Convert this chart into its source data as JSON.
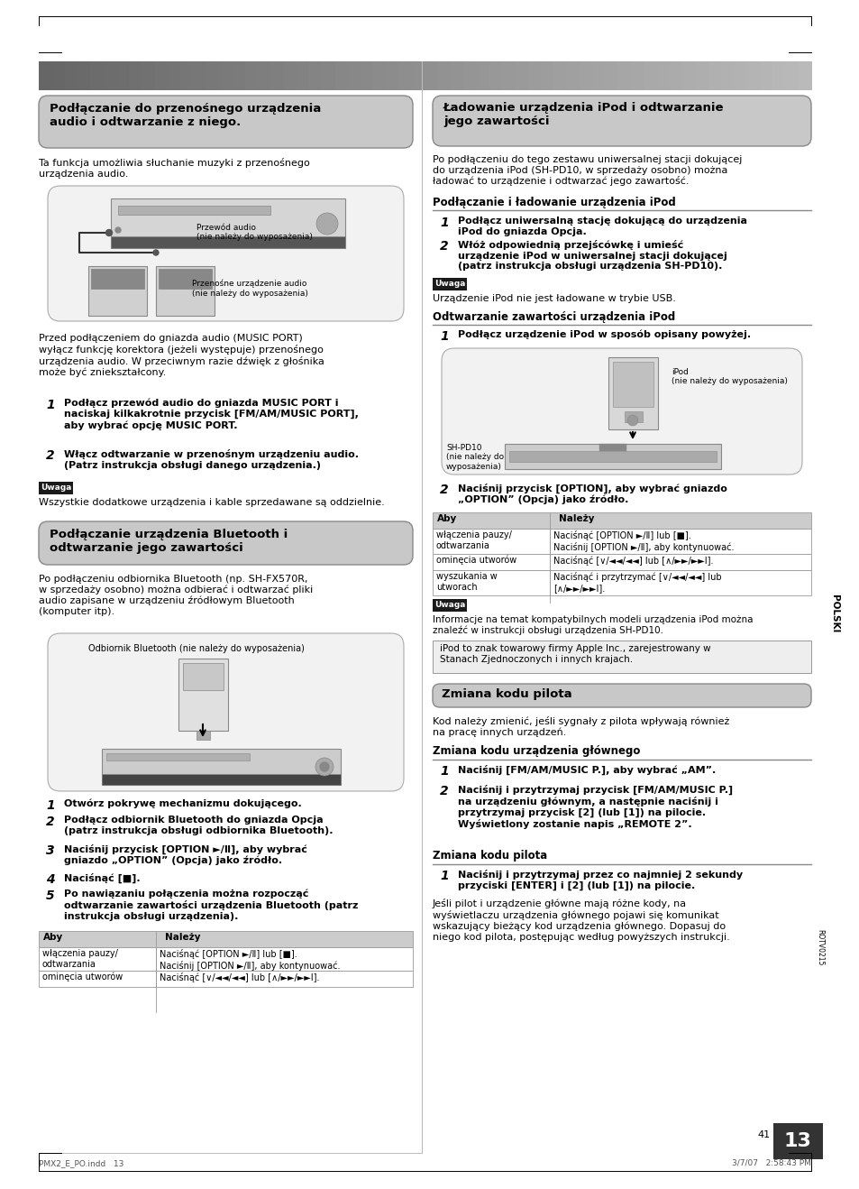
{
  "page_bg": "#ffffff",
  "page_width": 9.54,
  "page_height": 13.18,
  "left_col_title1": "Podłączanie do przenośnego urządzenia\naudio i odtwarzanie z niego.",
  "left_col_body1": "Ta funkcja umożliwia słuchanie muzyki z przenośnego\nurządzenia audio.",
  "left_img1_label1": "Przewód audio\n(nie należy do wyposażenia)",
  "left_img1_label2": "Przenośne urządzenie audio\n(nie należy do wyposażenia)",
  "left_col_body2": "Przed podłączeniem do gniazda audio (MUSIC PORT)\nwyłącz funkcję korektora (jeżeli występuje) przenośnego\nurządzenia audio. W przeciwnym razie dźwięk z głośnika\nmoże być zniekształcony.",
  "left_step1": "Podłącz przewód audio do gniazda MUSIC PORT i\nnaciskaj kilkakrotnie przycisk [FM/AM/MUSIC PORT],\naby wybrać opcję MUSIC PORT.",
  "left_step2": "Włącz odtwarzanie w przenośnym urządzeniu audio.\n(Patrz instrukcja obsługi danego urządzenia.)",
  "left_uwaga1_label": "Uwaga",
  "left_uwaga1_text": "Wszystkie dodatkowe urządzenia i kable sprzedawane są oddzielnie.",
  "left_col_title2": "Podłączanie urządzenia Bluetooth i\nodtwarzanie jego zawartości",
  "left_col_body3": "Po podłączeniu odbiornika Bluetooth (np. SH-FX570R,\nw sprzedaży osobno) można odbierać i odtwarzać pliki\naudio zapisane w urządzeniu źródłowym Bluetooth\n(komputer itp).",
  "left_img2_label": "Odbiornik Bluetooth (nie należy do wyposażenia)",
  "left_step3": "Otwórz pokrywę mechanizmu dokującego.",
  "left_step4": "Podłącz odbiornik Bluetooth do gniazda Opcja\n(patrz instrukcja obsługi odbiornika Bluetooth).",
  "left_step5": "Naciśnij przycisk [OPTION ►/Ⅱ], aby wybrać\ngniazdo „OPTION” (Opcja) jako źródło.",
  "left_step6": "Naciśnąć [■].",
  "left_step7": "Po nawiązaniu połączenia można rozpocząć\nodtwarzanie zawartości urządzenia Bluetooth (patrz\ninstrukcja obsługi urządzenia).",
  "left_table_header": [
    "Aby",
    "Należy"
  ],
  "left_table_rows": [
    [
      "włączenia pauzy/\nodtwarzania",
      "Naciśnąć [OPTION ►/Ⅱ] lub [■].\nNaciśnij [OPTION ►/Ⅱ], aby kontynuować."
    ],
    [
      "ominęcia utworów",
      "Naciśnąć [∨/◄◄/◄◄] lub [∧/►►/►►Ⅰ]."
    ]
  ],
  "right_col_title1": "Ładowanie urządzenia iPod i odtwarzanie\njego zawartości",
  "right_col_body1": "Po podłączeniu do tego zestawu uniwersalnej stacji dokującej\ndo urządzenia iPod (SH-PD10, w sprzedaży osobno) można\nładować to urządzenie i odtwarzać jego zawartość.",
  "right_sub_title1": "Podłączanie i ładowanie urządzenia iPod",
  "right_step1": "Podłącz uniwersalną stację dokującą do urządzenia\niPod do gniazda Opcja.",
  "right_step2": "Włóż odpowiednią przejścówkę i umieść\nurządzenie iPod w uniwersalnej stacji dokującej\n(patrz instrukcja obsługi urządzenia SH-PD10).",
  "right_uwaga1_label": "Uwaga",
  "right_uwaga1_text": "Urządzenie iPod nie jest ładowane w trybie USB.",
  "right_sub_title2": "Odtwarzanie zawartości urządzenia iPod",
  "right_step3": "Podłącz urządzenie iPod w sposób opisany powyżej.",
  "right_img_label1": "iPod\n(nie należy do wyposażenia)",
  "right_img_label2": "SH-PD10\n(nie należy do\nwyposażenia)",
  "right_step4": "Naciśnij przycisk [OPTION], aby wybrać gniazdo\n„OPTION” (Opcja) jako źródło.",
  "right_table_header": [
    "Aby",
    "Należy"
  ],
  "right_table_rows": [
    [
      "włączenia pauzy/\nodtwarzania",
      "Naciśnąć [OPTION ►/Ⅱ] lub [■].\nNaciśnij [OPTION ►/Ⅱ], aby kontynuować."
    ],
    [
      "ominęcia utworów",
      "Naciśnąć [∨/◄◄/◄◄] lub [∧/►►/►►Ⅰ]."
    ],
    [
      "wyszukania w\nutworach",
      "Naciśnąć i przytrzymać [∨/◄◄/◄◄] lub\n[∧/►►/►►Ⅰ]."
    ]
  ],
  "right_uwaga2_text": "Informacje na temat kompatybilnych modeli urządzenia iPod można\nznaleźć w instrukcji obsługi urządzenia SH-PD10.",
  "right_note_box": "iPod to znak towarowy firmy Apple Inc., zarejestrowany w\nStanach Zjednoczonych i innych krajach.",
  "right_sub_title3": "Zmiana kodu pilota",
  "right_body3": "Kod należy zmienić, jeśli sygnały z pilota wpływają również\nna pracę innych urządzeń.",
  "right_sub_title4": "Zmiana kodu urządzenia głównego",
  "right_step5": "Naciśnij [FM/AM/MUSIC P.], aby wybrać „AM”.",
  "right_step6": "Naciśnij i przytrzymaj przycisk [FM/AM/MUSIC P.]\nna urządzeniu głównym, a następnie naciśnij i\nprzytrzymaj przycisk [2] (lub [1]) na pilocie.\nWyświetlony zostanie napis „REMOTE 2”.",
  "right_sub_title5": "Zmiana kodu pilota",
  "right_step7": "Naciśnij i przytrzymaj przez co najmniej 2 sekundy\nprzyciski [ENTER] i [2] (lub [1]) na pilocie.",
  "right_body7": "Jeśli pilot i urządzenie główne mają różne kody, na\nwyświetlaczu urządzenia głównego pojawi się komunikat\nwskazujący bieżący kod urządzenia głównego. Dopasuj do\nniego kod pilota, postępując według powyższych instrukcji.",
  "page_num": "13",
  "page_num2": "41",
  "side_label": "POLSKI",
  "footer_text": "PMX2_E_PO.indd   13",
  "footer_date": "3/7/07   2:58:43 PM",
  "rotv_label": "ROTV0215",
  "grad_bar_left": "#666666",
  "grad_bar_right": "#bbbbbb",
  "section_box_color": "#c8c8c8",
  "section_box_edge": "#888888",
  "zmiana_box_color": "#c8c8c8",
  "table_header_color": "#cccccc",
  "uwaga_bg": "#1a1a1a",
  "note_box_bg": "#eeeeee",
  "note_box_edge": "#999999",
  "divider_color": "#bbbbbb",
  "subhead_line_color": "#888888",
  "img_box_bg": "#f2f2f2",
  "img_box_edge": "#aaaaaa",
  "table_edge": "#999999",
  "page_num_bg": "#333333"
}
